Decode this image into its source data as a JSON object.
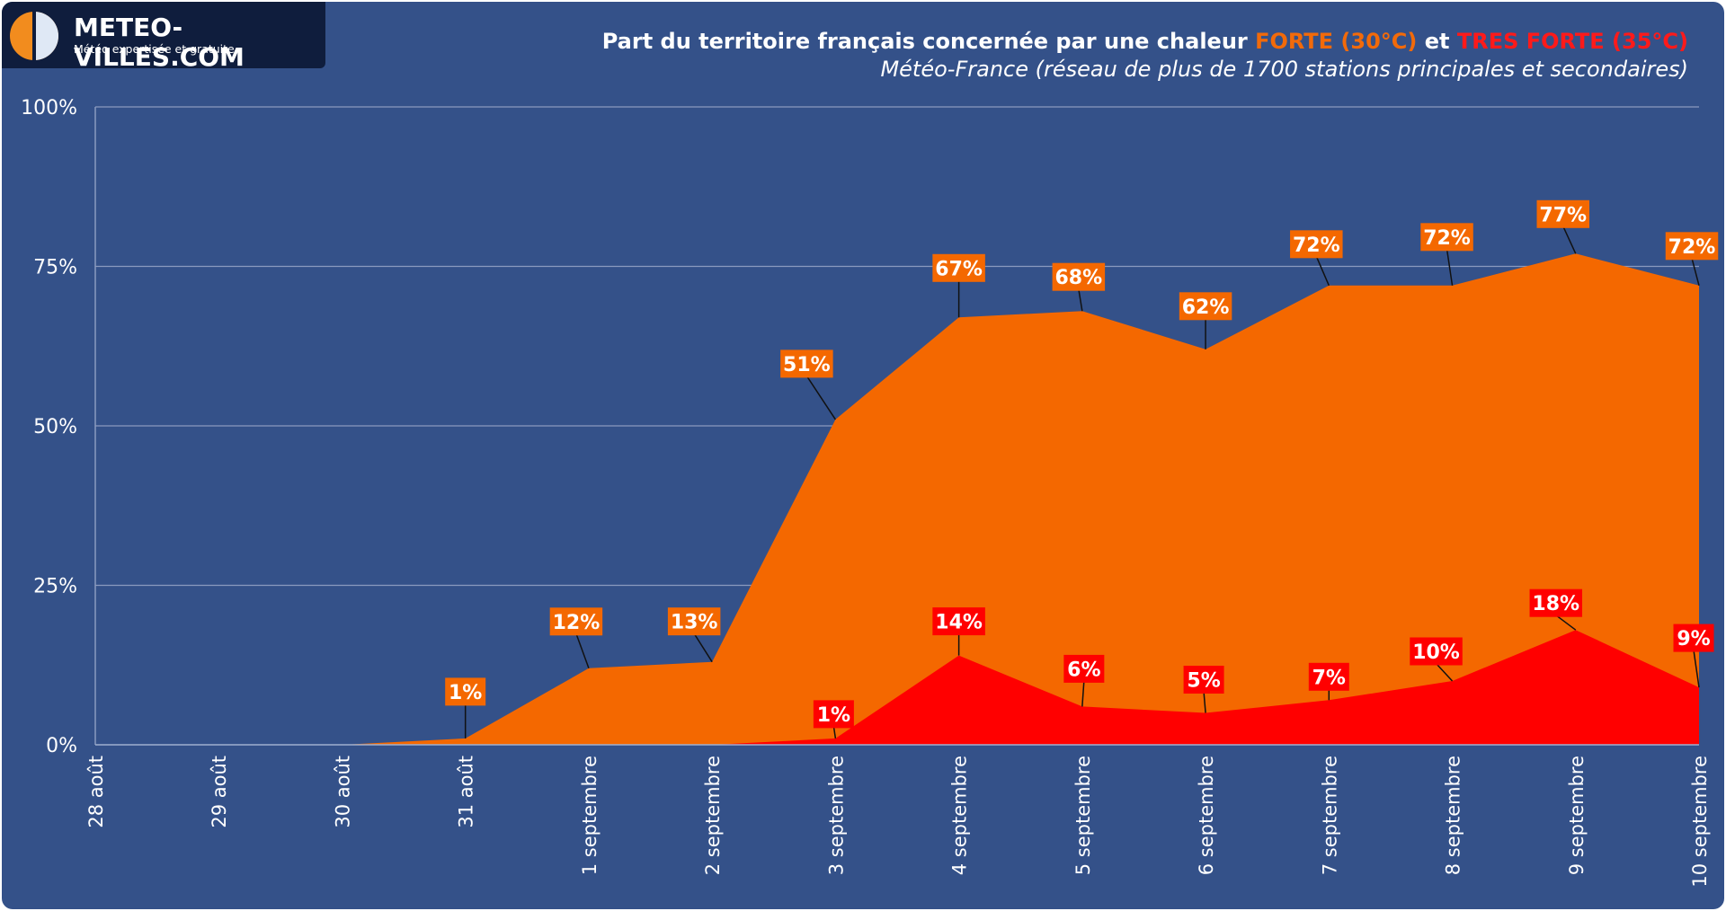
{
  "logo": {
    "title": "METEO-VILLES.COM",
    "subtitle": "Météo expertisée et gratuite"
  },
  "header": {
    "title_part1": "Part du territoire français concernée par une chaleur ",
    "title_forte": "FORTE (30°C)",
    "title_part2": " et ",
    "title_tres_forte": "TRES FORTE (35°C)",
    "subtitle": "Météo-France (réseau de plus de 1700 stations principales et secondaires)"
  },
  "colors": {
    "background": "#345189",
    "forte": "#f46800",
    "tres_forte": "#ff0000",
    "gridline": "#8a9abf",
    "text": "#ffffff"
  },
  "chart_data": {
    "type": "area",
    "title": "Part du territoire français concernée par une chaleur FORTE (30°C) et TRES FORTE (35°C)",
    "subtitle": "Météo-France (réseau de plus de 1700 stations principales et secondaires)",
    "categories": [
      "28 août",
      "29 août",
      "30 août",
      "31 août",
      "1 septembre",
      "2 septembre",
      "3 septembre",
      "4 septembre",
      "5 septembre",
      "6 septembre",
      "7 septembre",
      "8 septembre",
      "9 septembre",
      "10 septembre"
    ],
    "y_ticks": [
      "0%",
      "25%",
      "50%",
      "75%",
      "100%"
    ],
    "ylim": [
      0,
      100
    ],
    "grid": true,
    "series": [
      {
        "name": "FORTE (30°C)",
        "color": "#f46800",
        "values": [
          0,
          0,
          0,
          1,
          12,
          13,
          51,
          67,
          68,
          62,
          72,
          72,
          77,
          72
        ],
        "labels": [
          null,
          null,
          null,
          "1%",
          "12%",
          "13%",
          "51%",
          "67%",
          "68%",
          "62%",
          "72%",
          "72%",
          "77%",
          "72%"
        ]
      },
      {
        "name": "TRES FORTE (35°C)",
        "color": "#ff0000",
        "values": [
          0,
          0,
          0,
          0,
          0,
          0,
          1,
          14,
          6,
          5,
          7,
          10,
          18,
          9
        ],
        "labels": [
          null,
          null,
          null,
          null,
          null,
          null,
          "1%",
          "14%",
          "6%",
          "5%",
          "7%",
          "10%",
          "18%",
          "9%"
        ]
      }
    ]
  }
}
